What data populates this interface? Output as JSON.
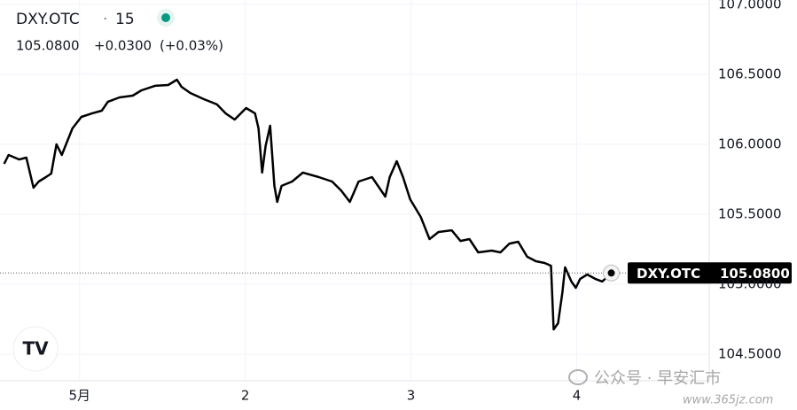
{
  "chart_data": {
    "type": "line",
    "symbol": "DXY.OTC",
    "separator": "·",
    "interval": "15",
    "price": "105.0800",
    "change": "+0.0300",
    "change_pct": "(+0.03%)",
    "color": "#000000",
    "grid": true,
    "x": [
      0.545,
      0.572,
      0.636,
      0.679,
      0.722,
      0.754,
      0.797,
      0.829,
      0.861,
      0.893,
      0.925,
      0.957,
      1.011,
      1.075,
      1.134,
      1.171,
      1.241,
      1.321,
      1.374,
      1.455,
      1.535,
      1.588,
      1.615,
      1.668,
      1.749,
      1.829,
      1.882,
      1.936,
      2.005,
      2.059,
      2.08,
      2.102,
      2.123,
      2.15,
      2.176,
      2.193,
      2.219,
      2.283,
      2.348,
      2.444,
      2.524,
      2.578,
      2.631,
      2.684,
      2.765,
      2.845,
      2.872,
      2.914,
      2.952,
      2.995,
      3.059,
      3.112,
      3.166,
      3.246,
      3.299,
      3.353,
      3.406,
      3.487,
      3.54,
      3.594,
      3.647,
      3.701,
      3.754,
      3.807,
      3.845,
      3.861,
      3.888,
      3.914,
      3.93,
      3.968,
      3.995,
      4.021,
      4.064,
      4.112,
      4.155,
      4.209
    ],
    "values": [
      105.86,
      105.923,
      105.891,
      105.904,
      105.689,
      105.733,
      105.765,
      105.79,
      105.999,
      105.923,
      106.018,
      106.113,
      106.195,
      106.22,
      106.239,
      106.303,
      106.334,
      106.347,
      106.385,
      106.417,
      106.423,
      106.461,
      106.41,
      106.366,
      106.322,
      106.284,
      106.22,
      106.176,
      106.258,
      106.22,
      106.113,
      105.797,
      105.987,
      106.132,
      105.702,
      105.588,
      105.702,
      105.733,
      105.797,
      105.765,
      105.733,
      105.67,
      105.588,
      105.733,
      105.765,
      105.626,
      105.765,
      105.879,
      105.765,
      105.607,
      105.48,
      105.322,
      105.373,
      105.385,
      105.309,
      105.322,
      105.227,
      105.24,
      105.227,
      105.29,
      105.303,
      105.196,
      105.164,
      105.151,
      105.132,
      104.677,
      104.721,
      104.943,
      105.12,
      105.019,
      104.974,
      105.038,
      105.069,
      105.038,
      105.019,
      105.08
    ],
    "xlim": [
      0.52,
      4.8
    ],
    "xticks": [
      {
        "value": 1,
        "label": "5月"
      },
      2,
      3,
      4
    ],
    "ylim": [
      104.31,
      107.03
    ],
    "yticks": [
      {
        "value": 104.5,
        "label": "104.5000"
      },
      {
        "value": 105,
        "label": "105.0000"
      },
      {
        "value": 105.5,
        "label": "105.5000"
      },
      {
        "value": 106,
        "label": "106.0000"
      },
      {
        "value": 106.5,
        "label": "106.5000"
      },
      {
        "value": 107,
        "label": "107.0000"
      }
    ]
  },
  "watermark": {
    "text": "公众号 · 早安汇市",
    "url": "www.365jz.com"
  }
}
